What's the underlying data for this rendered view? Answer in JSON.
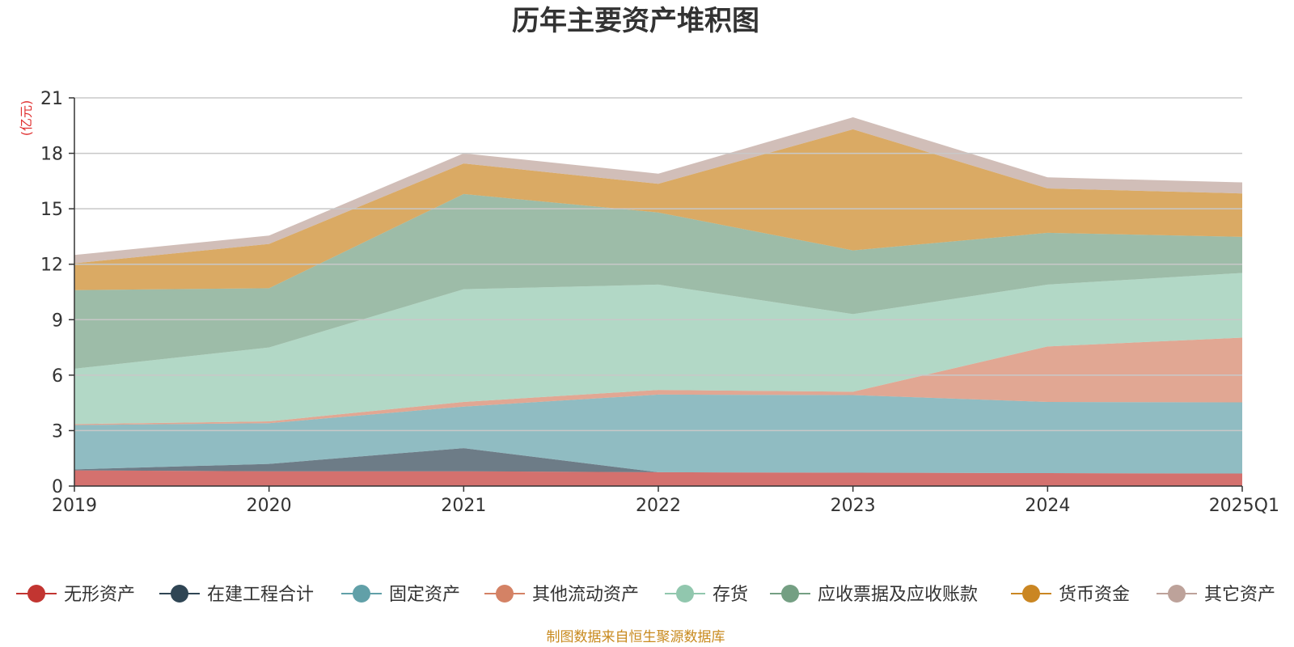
{
  "chart_data": {
    "type": "area",
    "stacked": true,
    "title": "历年主要资产堆积图",
    "unit_label": "(亿元)",
    "categories": [
      "2019",
      "2020",
      "2021",
      "2022",
      "2023",
      "2024",
      "2025Q1"
    ],
    "ylim": [
      0,
      21
    ],
    "yticks": [
      "0",
      "3",
      "6",
      "9",
      "12",
      "15",
      "18",
      "21"
    ],
    "grid": true,
    "legend_position": "bottom",
    "series": [
      {
        "name": "无形资产",
        "values": [
          0.85,
          0.8,
          0.8,
          0.75,
          0.72,
          0.7,
          0.68
        ],
        "color": "#c23531",
        "marker": "#c23531"
      },
      {
        "name": "在建工程合计",
        "values": [
          0.05,
          0.4,
          1.25,
          0.0,
          0.0,
          0.0,
          0.0
        ],
        "color": "#2f4554",
        "marker": "#2f4554"
      },
      {
        "name": "固定资产",
        "values": [
          2.4,
          2.2,
          2.25,
          4.2,
          4.2,
          3.85,
          3.85
        ],
        "color": "#61a0a8",
        "marker": "#61a0a8"
      },
      {
        "name": "其他流动资产",
        "values": [
          0.05,
          0.1,
          0.25,
          0.25,
          0.18,
          3.0,
          3.5
        ],
        "color": "#d48265",
        "marker": "#d48265"
      },
      {
        "name": "存货",
        "values": [
          3.0,
          4.0,
          6.1,
          5.7,
          4.2,
          3.35,
          3.5
        ],
        "color": "#91c7ae",
        "marker": "#91c7ae"
      },
      {
        "name": "应收票据及应收账款",
        "values": [
          4.25,
          3.2,
          5.15,
          3.9,
          3.45,
          2.8,
          1.95
        ],
        "color": "#749f83",
        "marker": "#749f83"
      },
      {
        "name": "货币资金",
        "values": [
          1.45,
          2.4,
          1.65,
          1.55,
          6.55,
          2.4,
          2.35
        ],
        "color": "#ca8622",
        "marker": "#ca8622"
      },
      {
        "name": "其它资产",
        "values": [
          0.45,
          0.45,
          0.55,
          0.55,
          0.65,
          0.6,
          0.6
        ],
        "color": "#bda29a",
        "marker": "#bda29a"
      }
    ]
  },
  "footer": {
    "source": "制图数据来自恒生聚源数据库",
    "color": "#c88a1e"
  },
  "colors": {
    "unit_label": "#e03030",
    "axis": "#333333",
    "grid": "#c8c8c8"
  }
}
